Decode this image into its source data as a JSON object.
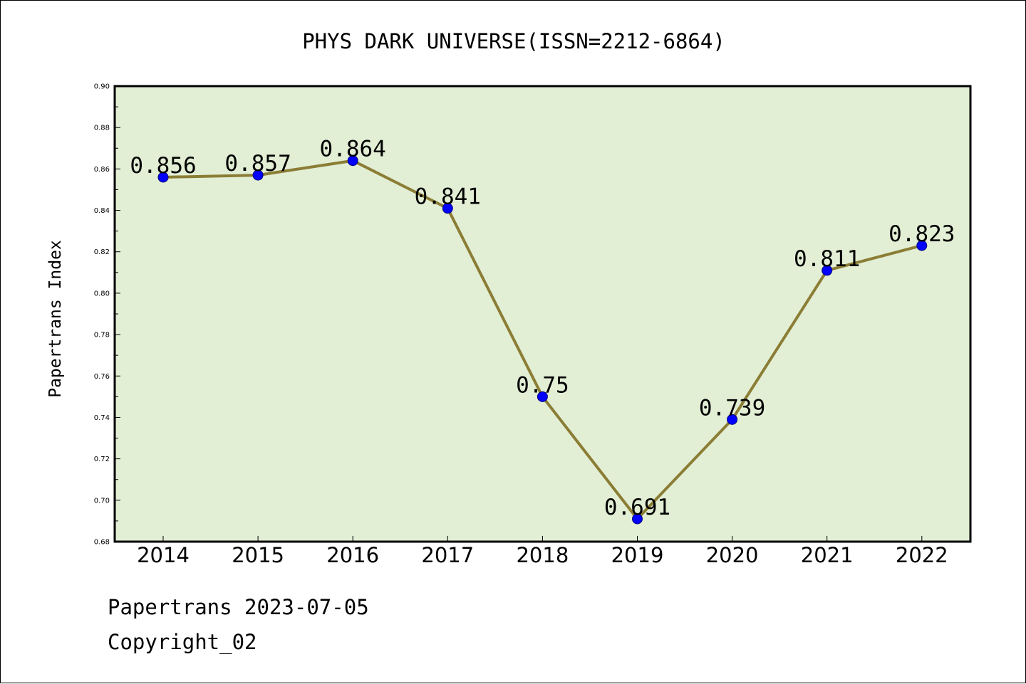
{
  "chart_data": {
    "type": "line",
    "title": "PHYS DARK UNIVERSE(ISSN=2212-6864)",
    "xlabel": "",
    "ylabel": "Papertrans Index",
    "categories": [
      "2014",
      "2015",
      "2016",
      "2017",
      "2018",
      "2019",
      "2020",
      "2021",
      "2022"
    ],
    "series": [
      {
        "values": [
          0.856,
          0.857,
          0.864,
          0.841,
          0.75,
          0.691,
          0.739,
          0.811,
          0.823
        ],
        "labels": [
          "0.856",
          "0.857",
          "0.864",
          "0.841",
          "0.75",
          "0.691",
          "0.739",
          "0.811",
          "0.823"
        ]
      }
    ],
    "ylim": [
      0.68,
      0.9
    ],
    "yticks": [
      "0.68",
      "0.70",
      "0.72",
      "0.74",
      "0.76",
      "0.78",
      "0.80",
      "0.82",
      "0.84",
      "0.86",
      "0.88",
      "0.90"
    ],
    "grid": false,
    "colors": {
      "line": "#8b7d35",
      "marker": "#0000ff",
      "plot_background": "#e2efd5",
      "frame": "#000000"
    }
  },
  "footer": {
    "date_line": "Papertrans 2023-07-05",
    "copyright": "Copyright_02"
  }
}
